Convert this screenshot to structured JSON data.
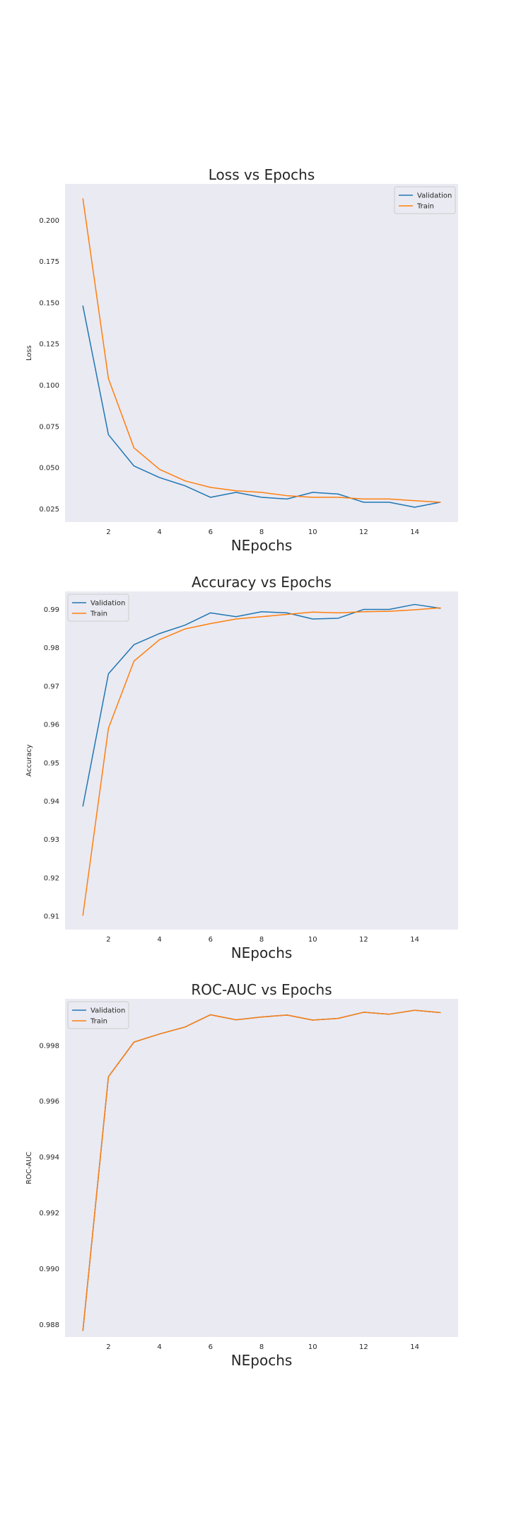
{
  "colors": {
    "plot_background": "#eaeaf2",
    "validation": "#1f77b4",
    "train": "#ff7f0e",
    "legend_background": "#eaeaf2",
    "legend_border": "#cccccc"
  },
  "chart_data": [
    {
      "type": "line",
      "title": "Loss vs Epochs",
      "xlabel": "NEpochs",
      "ylabel": "Loss",
      "x": [
        1,
        2,
        3,
        4,
        5,
        6,
        7,
        8,
        9,
        10,
        11,
        12,
        13,
        14,
        15
      ],
      "xlim": [
        0.3,
        15.7
      ],
      "ylim": [
        0.017,
        0.222
      ],
      "xticks": [
        2,
        4,
        6,
        8,
        10,
        12,
        14
      ],
      "yticks": [
        0.025,
        0.05,
        0.075,
        0.1,
        0.125,
        0.15,
        0.175,
        0.2
      ],
      "ytick_labels": [
        "0.025",
        "0.050",
        "0.075",
        "0.100",
        "0.125",
        "0.150",
        "0.175",
        "0.200"
      ],
      "grid": false,
      "legend_position": "top-right",
      "series": [
        {
          "name": "Validation",
          "color_key": "validation",
          "values": [
            0.148,
            0.07,
            0.051,
            0.044,
            0.039,
            0.032,
            0.035,
            0.032,
            0.031,
            0.035,
            0.034,
            0.029,
            0.029,
            0.026,
            0.029
          ]
        },
        {
          "name": "Train",
          "color_key": "train",
          "values": [
            0.213,
            0.104,
            0.062,
            0.049,
            0.042,
            0.038,
            0.036,
            0.035,
            0.033,
            0.032,
            0.032,
            0.031,
            0.031,
            0.03,
            0.029
          ]
        }
      ]
    },
    {
      "type": "line",
      "title": "Accuracy vs Epochs",
      "xlabel": "NEpochs",
      "ylabel": "Accuracy",
      "x": [
        1,
        2,
        3,
        4,
        5,
        6,
        7,
        8,
        9,
        10,
        11,
        12,
        13,
        14,
        15
      ],
      "xlim": [
        0.3,
        15.7
      ],
      "ylim": [
        0.9065,
        0.9947
      ],
      "xticks": [
        2,
        4,
        6,
        8,
        10,
        12,
        14
      ],
      "yticks": [
        0.91,
        0.92,
        0.93,
        0.94,
        0.95,
        0.96,
        0.97,
        0.98,
        0.99
      ],
      "ytick_labels": [
        "0.91",
        "0.92",
        "0.93",
        "0.94",
        "0.95",
        "0.96",
        "0.97",
        "0.98",
        "0.99"
      ],
      "grid": false,
      "legend_position": "top-left",
      "series": [
        {
          "name": "Validation",
          "color_key": "validation",
          "values": [
            0.9387,
            0.9732,
            0.9808,
            0.9837,
            0.9859,
            0.9891,
            0.9881,
            0.9894,
            0.9891,
            0.9875,
            0.9877,
            0.99,
            0.99,
            0.9913,
            0.9903
          ]
        },
        {
          "name": "Train",
          "color_key": "train",
          "values": [
            0.9102,
            0.959,
            0.9765,
            0.9821,
            0.9849,
            0.9863,
            0.9875,
            0.9881,
            0.9887,
            0.9893,
            0.9891,
            0.9894,
            0.9895,
            0.9899,
            0.9904
          ]
        }
      ]
    },
    {
      "type": "line",
      "title": "ROC-AUC vs Epochs",
      "xlabel": "NEpochs",
      "ylabel": "ROC-AUC",
      "x": [
        1,
        2,
        3,
        4,
        5,
        6,
        7,
        8,
        9,
        10,
        11,
        12,
        13,
        14,
        15
      ],
      "xlim": [
        0.3,
        15.7
      ],
      "ylim": [
        0.98755,
        0.99967
      ],
      "xticks": [
        2,
        4,
        6,
        8,
        10,
        12,
        14
      ],
      "yticks": [
        0.988,
        0.99,
        0.992,
        0.994,
        0.996,
        0.998
      ],
      "ytick_labels": [
        "0.988",
        "0.990",
        "0.992",
        "0.994",
        "0.996",
        "0.998"
      ],
      "grid": false,
      "legend_position": "top-left",
      "series": [
        {
          "name": "Validation",
          "color_key": "validation",
          "values": [
            0.98778,
            0.99688,
            0.99812,
            0.99841,
            0.99866,
            0.9991,
            0.99892,
            0.99902,
            0.99909,
            0.99891,
            0.99897,
            0.99919,
            0.99912,
            0.99926,
            0.99918
          ]
        },
        {
          "name": "Train",
          "color_key": "train",
          "values": [
            0.98778,
            0.99688,
            0.99812,
            0.99841,
            0.99866,
            0.9991,
            0.99892,
            0.99902,
            0.99909,
            0.99891,
            0.99897,
            0.99919,
            0.99912,
            0.99926,
            0.99918
          ]
        }
      ]
    }
  ]
}
